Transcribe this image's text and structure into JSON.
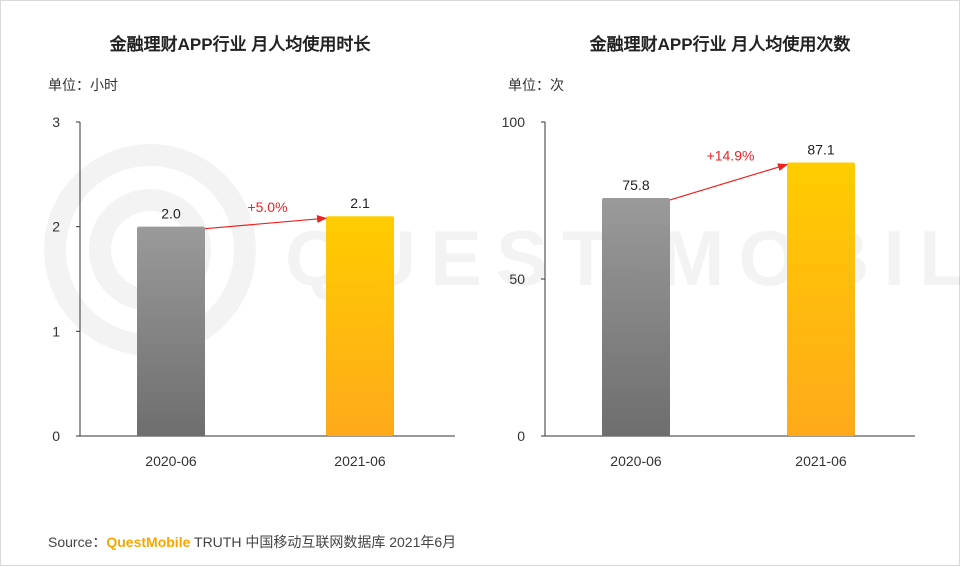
{
  "source": {
    "prefix": "Source：",
    "brand": "QuestMobile",
    "suffix": " TRUTH 中国移动互联网数据库 2021年6月"
  },
  "watermark": {
    "text": "QUEST MOBILE"
  },
  "colors": {
    "bar_2020": "#8c8c8c",
    "bar_2021": "#ffc000",
    "growth": "#ee2222"
  },
  "chart_data": [
    {
      "type": "bar",
      "title": "金融理财APP行业 月人均使用时长",
      "unit": "单位：小时",
      "categories": [
        "2020-06",
        "2021-06"
      ],
      "values": [
        2.0,
        2.1
      ],
      "value_labels": [
        "2.0",
        "2.1"
      ],
      "ylim": [
        0,
        3
      ],
      "yticks": [
        0,
        1,
        2,
        3
      ],
      "ytick_labels": [
        "0",
        "1",
        "2",
        "3"
      ],
      "growth_label": "+5.0%",
      "grid": false
    },
    {
      "type": "bar",
      "title": "金融理财APP行业 月人均使用次数",
      "unit": "单位：次",
      "categories": [
        "2020-06",
        "2021-06"
      ],
      "values": [
        75.8,
        87.1
      ],
      "value_labels": [
        "75.8",
        "87.1"
      ],
      "ylim": [
        0,
        100
      ],
      "yticks": [
        0,
        50,
        100
      ],
      "ytick_labels": [
        "0",
        "50",
        "100"
      ],
      "growth_label": "+14.9%",
      "grid": false
    }
  ]
}
